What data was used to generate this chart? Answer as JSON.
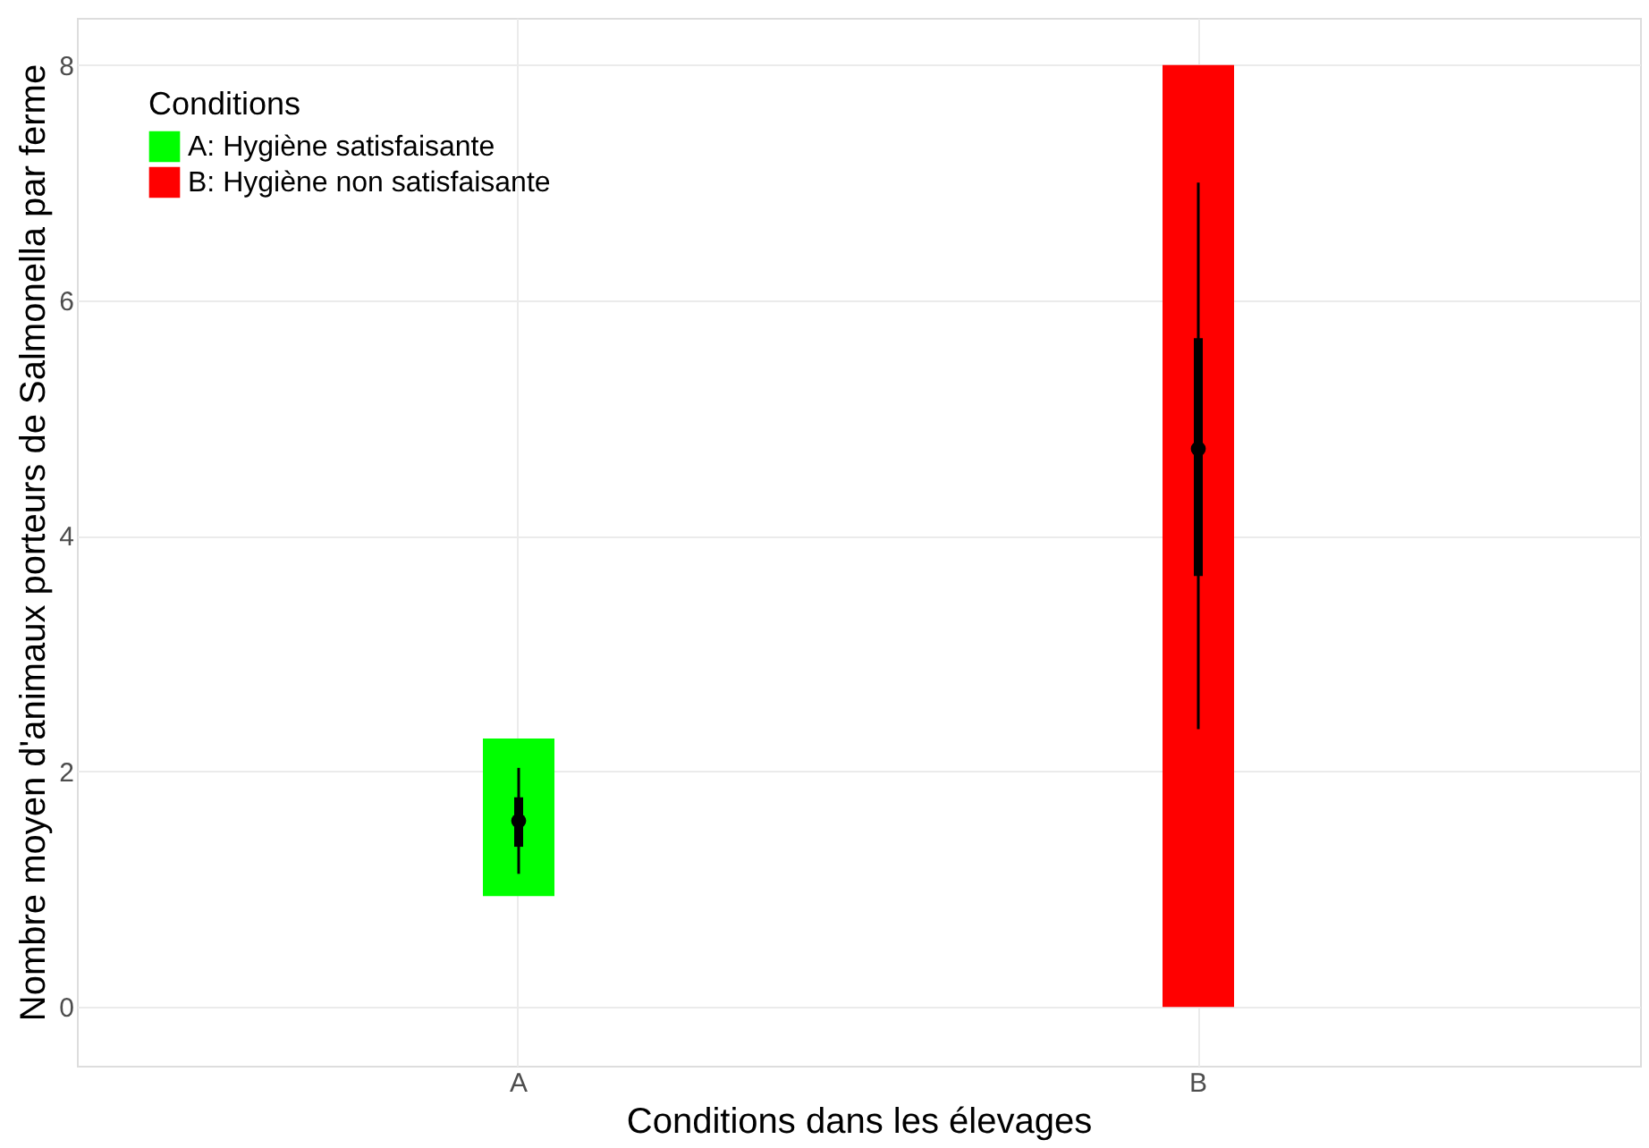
{
  "chart_data": {
    "type": "bar",
    "xlabel": "Conditions dans les élevages",
    "ylabel": "Nombre moyen d'animaux porteurs de Salmonella par ferme",
    "legend_title": "Conditions",
    "legend": "top left",
    "grid": true,
    "categories": [
      "A",
      "B"
    ],
    "ylim": [
      -0.5,
      8.4
    ],
    "yticks": [
      0,
      2,
      4,
      6,
      8
    ],
    "series": [
      {
        "name": "A: Hygiène satisfaisante",
        "color": "#00ff00",
        "base": [
          0.94,
          null
        ],
        "values": [
          1.34,
          null
        ]
      },
      {
        "name": "B: Hygiène non satisfaisante",
        "color": "#ff0000",
        "base": [
          null,
          0
        ],
        "values": [
          null,
          8
        ]
      },
      {
        "type": "box",
        "color": "#000000",
        "boxes": [
          {
            "low": 1.13,
            "q1": 1.36,
            "median": 1.58,
            "q3": 1.78,
            "high": 2.03
          },
          {
            "low": 2.36,
            "q1": 3.66,
            "median": 4.74,
            "q3": 5.68,
            "high": 7.0
          }
        ]
      }
    ]
  }
}
